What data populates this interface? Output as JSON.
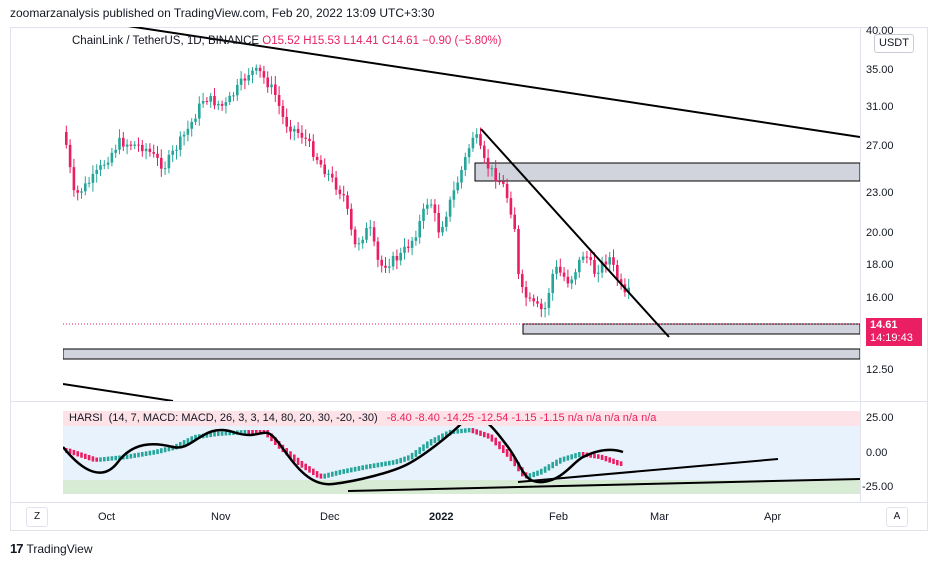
{
  "header": {
    "published_text": "zoomarzanalysis published on TradingView.com, Feb 20, 2022 13:09 UTC+3:30"
  },
  "legend": {
    "symbol": "ChainLink / TetherUS, 1D, BINANCE",
    "open": "O15.52",
    "high": "H15.53",
    "low": "L14.41",
    "close": "C14.61",
    "change": "−0.90 (−5.80%)"
  },
  "price_axis": {
    "currency_button": "USDT",
    "labels": [
      "40.00",
      "35.00",
      "31.00",
      "27.00",
      "23.00",
      "20.00",
      "18.00",
      "16.00",
      "12.50"
    ],
    "current_price": "14.61",
    "countdown": "14:19:43"
  },
  "indicator": {
    "legend_name": "HARSI",
    "legend_params": "(14, 7, MACD: MACD, 26, 3, 3, 14, 80, 20, 30, -20, -30)",
    "legend_values": "-8.40  -8.40  -14.25  -12.54  -1.15  -1.15  n/a  n/a  n/a  n/a  n/a",
    "axis_labels": [
      "25.00",
      "0.00",
      "-25.00"
    ]
  },
  "time_axis": {
    "labels": [
      "Oct",
      "Nov",
      "Dec",
      "2022",
      "Feb",
      "Mar",
      "Apr"
    ],
    "left_button": "Z",
    "right_button": "A"
  },
  "footer": {
    "brand": "TradingView"
  },
  "colors": {
    "up": "#26a69a",
    "down": "#e91e63",
    "zone": "#d1d4dc",
    "trendline": "#000000"
  }
}
